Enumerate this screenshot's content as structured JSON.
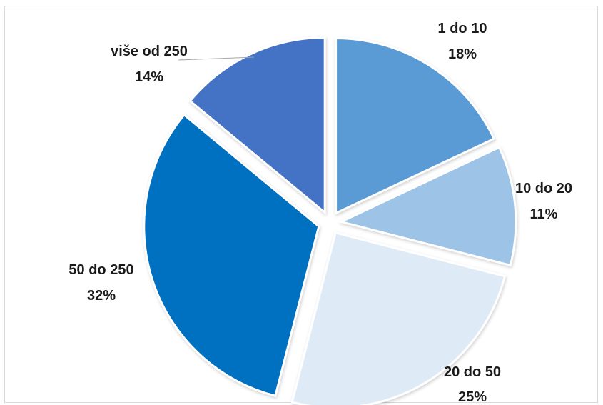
{
  "chart_data": {
    "type": "pie",
    "slices": [
      {
        "label": "1 do 10",
        "value": 18,
        "percent_label": "18%",
        "color": "#5b9bd5"
      },
      {
        "label": "10 do 20",
        "value": 11,
        "percent_label": "11%",
        "color": "#9dc3e6"
      },
      {
        "label": "20 do 50",
        "value": 25,
        "percent_label": "25%",
        "color": "#deebf7"
      },
      {
        "label": "50 do 250",
        "value": 32,
        "percent_label": "32%",
        "color": "#0070c0"
      },
      {
        "label": "više od 250",
        "value": 14,
        "percent_label": "14%",
        "color": "#4472c4"
      }
    ],
    "exploded": true,
    "legend": "none"
  }
}
